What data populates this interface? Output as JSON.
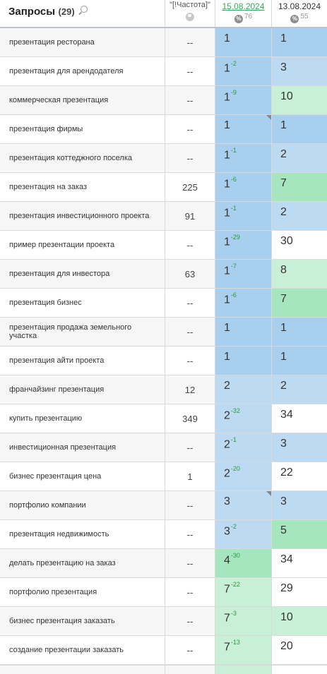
{
  "header": {
    "title": "Запросы",
    "count": "(29)",
    "freq_label": "\"[!Частота]\"",
    "date1": "15.08.2024",
    "date1_count": "76",
    "date2": "13.08.2024",
    "date2_count": "55",
    "percent_symbol": "%"
  },
  "colors": {
    "blue_strong": "#a9cfee",
    "blue_light": "#bcdaf2",
    "green_strong": "#a6e6be",
    "green_light": "#c8f0d6",
    "white": "#ffffff",
    "change_positive": "#2b9a3e"
  },
  "rows": [
    {
      "query": "презентация ресторана",
      "freq": "--",
      "pos1": "1",
      "delta": "",
      "pos2": "1",
      "c1": "#a9cfee",
      "c2": "#a9cfee",
      "mark": false
    },
    {
      "query": "презентация для арендодателя",
      "freq": "--",
      "pos1": "1",
      "delta": "-2",
      "pos2": "3",
      "c1": "#a9cfee",
      "c2": "#bcdaf2",
      "mark": false
    },
    {
      "query": "коммерческая презентация",
      "freq": "--",
      "pos1": "1",
      "delta": "-9",
      "pos2": "10",
      "c1": "#a9cfee",
      "c2": "#c8f0d6",
      "mark": false
    },
    {
      "query": "презентация фирмы",
      "freq": "--",
      "pos1": "1",
      "delta": "",
      "pos2": "1",
      "c1": "#a9cfee",
      "c2": "#a9cfee",
      "mark": true
    },
    {
      "query": "презентация коттеджного поселка",
      "freq": "--",
      "pos1": "1",
      "delta": "-1",
      "pos2": "2",
      "c1": "#a9cfee",
      "c2": "#bcdaf2",
      "mark": false
    },
    {
      "query": "презентация на заказ",
      "freq": "225",
      "pos1": "1",
      "delta": "-6",
      "pos2": "7",
      "c1": "#a9cfee",
      "c2": "#a6e6be",
      "mark": false
    },
    {
      "query": "презентация инвестиционного проекта",
      "freq": "91",
      "pos1": "1",
      "delta": "-1",
      "pos2": "2",
      "c1": "#a9cfee",
      "c2": "#bcdaf2",
      "mark": false
    },
    {
      "query": "пример презентации проекта",
      "freq": "--",
      "pos1": "1",
      "delta": "-29",
      "pos2": "30",
      "c1": "#a9cfee",
      "c2": "#ffffff",
      "mark": false
    },
    {
      "query": "презентация для инвестора",
      "freq": "63",
      "pos1": "1",
      "delta": "-7",
      "pos2": "8",
      "c1": "#a9cfee",
      "c2": "#c8f0d6",
      "mark": false
    },
    {
      "query": "презентация бизнес",
      "freq": "--",
      "pos1": "1",
      "delta": "-6",
      "pos2": "7",
      "c1": "#a9cfee",
      "c2": "#a6e6be",
      "mark": false
    },
    {
      "query": "презентация продажа земельного участка",
      "freq": "--",
      "pos1": "1",
      "delta": "",
      "pos2": "1",
      "c1": "#a9cfee",
      "c2": "#a9cfee",
      "mark": false
    },
    {
      "query": "презентация айти проекта",
      "freq": "--",
      "pos1": "1",
      "delta": "",
      "pos2": "1",
      "c1": "#a9cfee",
      "c2": "#a9cfee",
      "mark": false
    },
    {
      "query": "франчайзинг презентация",
      "freq": "12",
      "pos1": "2",
      "delta": "",
      "pos2": "2",
      "c1": "#bcdaf2",
      "c2": "#bcdaf2",
      "mark": false
    },
    {
      "query": "купить презентацию",
      "freq": "349",
      "pos1": "2",
      "delta": "-32",
      "pos2": "34",
      "c1": "#bcdaf2",
      "c2": "#ffffff",
      "mark": false
    },
    {
      "query": "инвестиционная презентация",
      "freq": "--",
      "pos1": "2",
      "delta": "-1",
      "pos2": "3",
      "c1": "#bcdaf2",
      "c2": "#bcdaf2",
      "mark": false
    },
    {
      "query": "бизнес презентация цена",
      "freq": "1",
      "pos1": "2",
      "delta": "-20",
      "pos2": "22",
      "c1": "#bcdaf2",
      "c2": "#ffffff",
      "mark": false
    },
    {
      "query": "портфолио компании",
      "freq": "--",
      "pos1": "3",
      "delta": "",
      "pos2": "3",
      "c1": "#bcdaf2",
      "c2": "#bcdaf2",
      "mark": true
    },
    {
      "query": "презентация недвижимость",
      "freq": "--",
      "pos1": "3",
      "delta": "-2",
      "pos2": "5",
      "c1": "#bcdaf2",
      "c2": "#a6e6be",
      "mark": false
    },
    {
      "query": "делать презентацию на заказ",
      "freq": "--",
      "pos1": "4",
      "delta": "-30",
      "pos2": "34",
      "c1": "#a6e6be",
      "c2": "#ffffff",
      "mark": false
    },
    {
      "query": "портфолио презентация",
      "freq": "--",
      "pos1": "7",
      "delta": "-22",
      "pos2": "29",
      "c1": "#c8f0d6",
      "c2": "#ffffff",
      "mark": false
    },
    {
      "query": "бизнес презентация заказать",
      "freq": "--",
      "pos1": "7",
      "delta": "-3",
      "pos2": "10",
      "c1": "#c8f0d6",
      "c2": "#c8f0d6",
      "mark": false
    },
    {
      "query": "создание презентации заказать",
      "freq": "--",
      "pos1": "7",
      "delta": "-13",
      "pos2": "20",
      "c1": "#c8f0d6",
      "c2": "#ffffff",
      "mark": false
    }
  ]
}
